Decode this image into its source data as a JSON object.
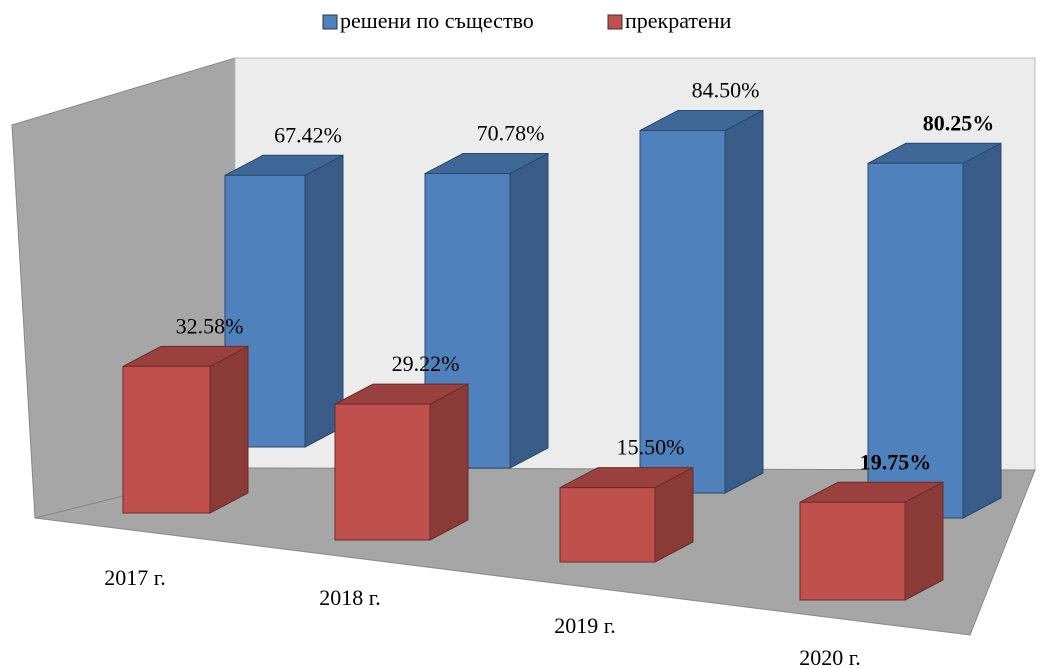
{
  "chart_data": {
    "type": "bar3d",
    "categories": [
      "2017 г.",
      "2018 г.",
      "2019 г.",
      "2020 г."
    ],
    "series": [
      {
        "name": "решени по същество",
        "color": "#4f81bd",
        "values": [
          67.42,
          70.78,
          84.5,
          80.25
        ],
        "value_labels": [
          "67.42%",
          "70.78%",
          "84.50%",
          "80.25%"
        ],
        "label_bold": [
          false,
          false,
          false,
          true
        ]
      },
      {
        "name": "прекратени",
        "color": "#c0504d",
        "values": [
          32.58,
          29.22,
          15.5,
          19.75
        ],
        "value_labels": [
          "32.58%",
          "29.22%",
          "15.50%",
          "19.75%"
        ],
        "label_bold": [
          false,
          false,
          false,
          true
        ]
      }
    ]
  }
}
